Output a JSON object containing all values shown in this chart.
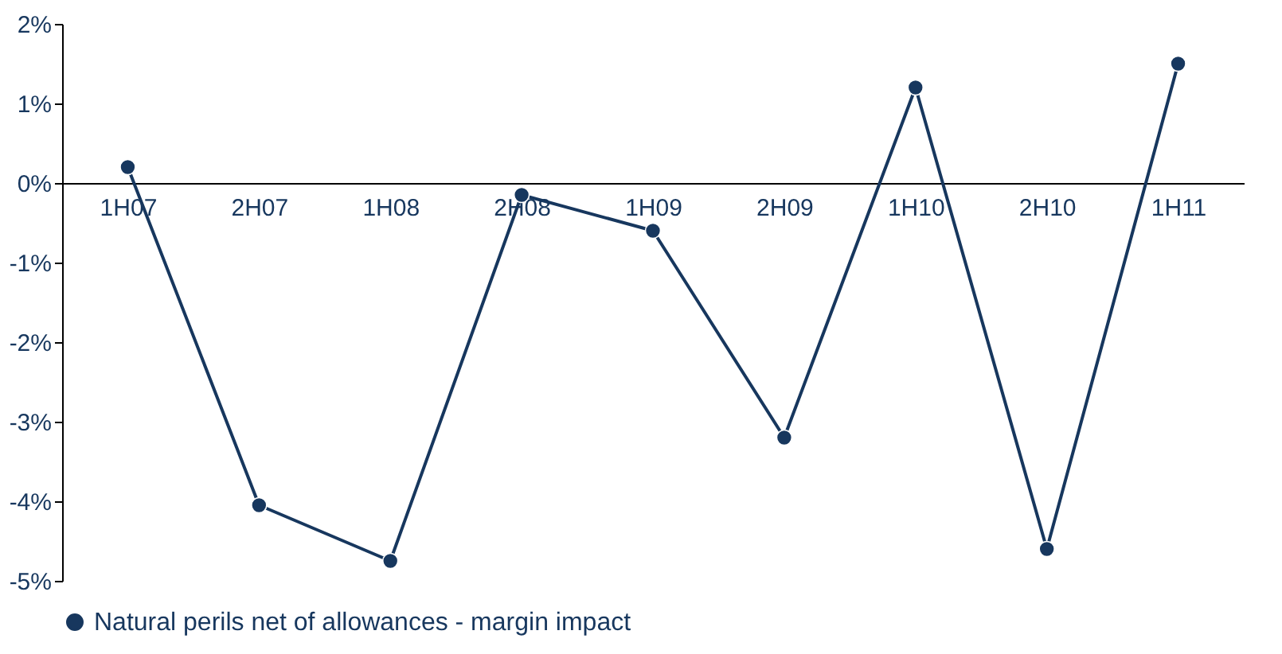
{
  "chart_data": {
    "type": "line",
    "categories": [
      "1H07",
      "2H07",
      "1H08",
      "2H08",
      "1H09",
      "2H09",
      "1H10",
      "2H10",
      "1H11"
    ],
    "series": [
      {
        "name": "Natural perils net of allowances - margin impact",
        "color": "#17375e",
        "values": [
          0.2,
          -4.05,
          -4.75,
          -0.15,
          -0.6,
          -3.2,
          1.2,
          -4.6,
          1.5
        ]
      }
    ],
    "ylim": [
      -5,
      2
    ],
    "yticks": [
      {
        "value": -5,
        "label": "-5%"
      },
      {
        "value": -4,
        "label": "-4%"
      },
      {
        "value": -3,
        "label": "-3%"
      },
      {
        "value": -2,
        "label": "-2%"
      },
      {
        "value": -1,
        "label": "-1%"
      },
      {
        "value": 0,
        "label": "0%"
      },
      {
        "value": 1,
        "label": "1%"
      },
      {
        "value": 2,
        "label": "2%"
      }
    ],
    "grid": false,
    "legend": "bottom",
    "marker": "circle",
    "line_style": "solid"
  }
}
